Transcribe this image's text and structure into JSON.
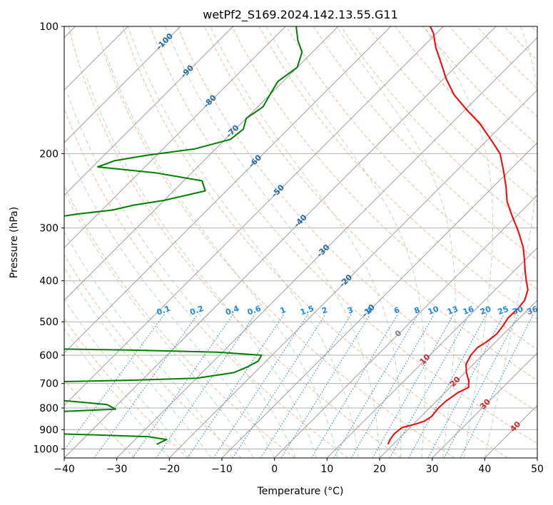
{
  "chart_data": {
    "type": "line",
    "title": "wetPf2_S169.2024.142.13.55.G11",
    "xlabel": "Temperature (°C)",
    "ylabel": "Pressure (hPa)",
    "xlim": [
      -40,
      50
    ],
    "ylim": [
      1050,
      100
    ],
    "y_scale": "log",
    "x_ticks": [
      -40,
      -30,
      -20,
      -10,
      0,
      10,
      20,
      30,
      40,
      50
    ],
    "y_ticks": [
      100,
      200,
      300,
      400,
      500,
      600,
      700,
      800,
      900,
      1000
    ],
    "grid": true,
    "skew_degrees": 45,
    "series": [
      {
        "color": "#ff0000",
        "x_unit": "°C",
        "points": [
          [
            19,
            975
          ],
          [
            18.5,
            950
          ],
          [
            18.2,
            920
          ],
          [
            18.5,
            890
          ],
          [
            20.5,
            872
          ],
          [
            21.5,
            860
          ],
          [
            22,
            838
          ],
          [
            21.7,
            800
          ],
          [
            21.8,
            770
          ],
          [
            22.5,
            735
          ],
          [
            23.5,
            715
          ],
          [
            22.3,
            690
          ],
          [
            20.3,
            660
          ],
          [
            18.6,
            630
          ],
          [
            17.8,
            600
          ],
          [
            17.6,
            575
          ],
          [
            18.2,
            560
          ],
          [
            18.7,
            535
          ],
          [
            18.3,
            510
          ],
          [
            17.8,
            490
          ],
          [
            17.9,
            465
          ],
          [
            17.6,
            445
          ],
          [
            16.2,
            420
          ],
          [
            14.2,
            400
          ],
          [
            12.2,
            380
          ],
          [
            10.2,
            360
          ],
          [
            7.2,
            333
          ],
          [
            3.2,
            305
          ],
          [
            -1,
            280
          ],
          [
            -4.5,
            260
          ],
          [
            -7.5,
            240
          ],
          [
            -11,
            220
          ],
          [
            -15,
            200
          ],
          [
            -19.5,
            185
          ],
          [
            -24.5,
            170
          ],
          [
            -29.5,
            158
          ],
          [
            -35,
            145
          ],
          [
            -39.5,
            133
          ],
          [
            -43.5,
            122
          ],
          [
            -47.5,
            112
          ],
          [
            -50.5,
            104
          ],
          [
            -52.5,
            100
          ]
        ]
      },
      {
        "color": "#008000",
        "x_unit": "°C",
        "points": [
          [
            -25,
            975
          ],
          [
            -24,
            950
          ],
          [
            -28,
            935
          ],
          [
            -40,
            925
          ],
          [
            -54,
            915
          ],
          [
            -66,
            905
          ],
          [
            -76,
            888
          ],
          [
            -82,
            862
          ],
          [
            -85,
            855
          ],
          [
            -95,
            848
          ],
          [
            -80,
            840
          ],
          [
            -70,
            830
          ],
          [
            -54,
            820
          ],
          [
            -39.5,
            805
          ],
          [
            -42,
            785
          ],
          [
            -50,
            770
          ],
          [
            -62,
            756
          ],
          [
            -80,
            745
          ],
          [
            -95,
            740
          ],
          [
            -110,
            735
          ],
          [
            -120,
            730
          ],
          [
            -95,
            705
          ],
          [
            -75,
            700
          ],
          [
            -60,
            695
          ],
          [
            -43,
            688
          ],
          [
            -30,
            680
          ],
          [
            -24,
            660
          ],
          [
            -22.5,
            640
          ],
          [
            -21.5,
            620
          ],
          [
            -22,
            600
          ],
          [
            -31,
            590
          ],
          [
            -49,
            583
          ],
          [
            -62,
            580
          ],
          [
            -72,
            577
          ],
          [
            -80,
            572
          ],
          [
            -90,
            565
          ],
          [
            -100,
            557
          ],
          [
            -104,
            540
          ],
          [
            -102,
            515
          ],
          [
            -98,
            490
          ],
          [
            -91,
            465
          ],
          [
            -93.5,
            440
          ],
          [
            -99,
            420
          ],
          [
            -101.5,
            400
          ],
          [
            -100.5,
            380
          ],
          [
            -100,
            360
          ],
          [
            -102,
            340
          ],
          [
            -102,
            320
          ],
          [
            -98,
            305
          ],
          [
            -92,
            290
          ],
          [
            -84,
            278
          ],
          [
            -78,
            272
          ],
          [
            -75,
            265
          ],
          [
            -70,
            258
          ],
          [
            -64,
            245
          ],
          [
            -66.5,
            232
          ],
          [
            -77,
            222
          ],
          [
            -89,
            215
          ],
          [
            -87,
            208
          ],
          [
            -82,
            202
          ],
          [
            -74,
            195
          ],
          [
            -69,
            185
          ],
          [
            -68.5,
            175
          ],
          [
            -70,
            165
          ],
          [
            -69,
            155
          ],
          [
            -70,
            145
          ],
          [
            -71,
            135
          ],
          [
            -70,
            125
          ],
          [
            -72,
            115
          ],
          [
            -75,
            108
          ],
          [
            -78,
            100
          ]
        ]
      }
    ],
    "isotherm_labels": [
      "-100",
      "-90",
      "-80",
      "-70",
      "-60",
      "-50",
      "-40",
      "-30",
      "-20",
      "-10",
      "0",
      "10",
      "20",
      "30",
      "40"
    ],
    "mixing_ratio_labels": [
      "0.1",
      "0.2",
      "0.4",
      "0.6",
      "1",
      "1.5",
      "2",
      "3",
      "4",
      "6",
      "8",
      "10",
      "13",
      "16",
      "20",
      "25",
      "30",
      "36"
    ]
  },
  "style": {
    "temp_color": "#ff0000",
    "dewpoint_color": "#008000",
    "isotherm_line": "#aaaaaa",
    "dry_adiabat": "#f5a58a",
    "moist_adiabat": "#9ed39e",
    "mixing_ratio": "#1e88e5",
    "isotherm_label_neg": "#1f6aa8",
    "isotherm_label_zero": "#808080",
    "isotherm_label_pos": "#d62728"
  }
}
